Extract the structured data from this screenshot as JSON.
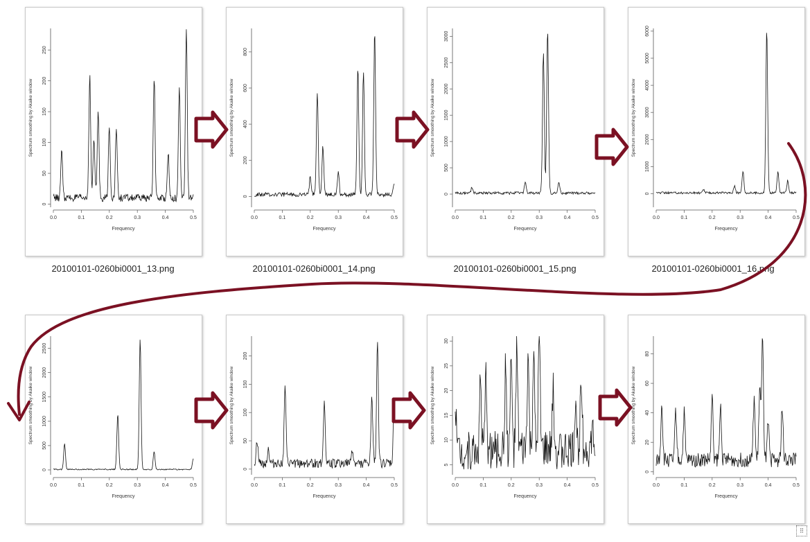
{
  "footer_text": "",
  "chart_data": [
    {
      "type": "line",
      "file": "20100101-0260bi0001_13.png",
      "xlabel": "Frequency",
      "ylabel": "Spectrum smoothing by Akaike window",
      "xlim": [
        0,
        0.5
      ],
      "xticks": [
        "0.0",
        "0.1",
        "0.2",
        "0.3",
        "0.4",
        "0.5"
      ],
      "ylim": [
        -5,
        285
      ],
      "yticks": [
        "0",
        "50",
        "100",
        "150",
        "200",
        "250"
      ],
      "ytick_values": [
        0,
        50,
        100,
        150,
        200,
        250
      ],
      "baseline": 10,
      "noise": 6,
      "peaks": [
        {
          "x": 0.03,
          "y": 88
        },
        {
          "x": 0.13,
          "y": 210
        },
        {
          "x": 0.145,
          "y": 105
        },
        {
          "x": 0.16,
          "y": 150
        },
        {
          "x": 0.2,
          "y": 128
        },
        {
          "x": 0.225,
          "y": 122
        },
        {
          "x": 0.36,
          "y": 207
        },
        {
          "x": 0.41,
          "y": 85
        },
        {
          "x": 0.45,
          "y": 185
        },
        {
          "x": 0.475,
          "y": 282
        }
      ]
    },
    {
      "type": "line",
      "file": "20100101-0260bi0001_14.png",
      "xlabel": "Frequency",
      "ylabel": "Spectrum smoothing by Akaike window",
      "xlim": [
        0,
        0.5
      ],
      "xticks": [
        "0.0",
        "0.1",
        "0.2",
        "0.3",
        "0.4",
        "0.5"
      ],
      "ylim": [
        -60,
        930
      ],
      "yticks": [
        "0",
        "200",
        "400",
        "600",
        "800"
      ],
      "ytick_values": [
        0,
        200,
        400,
        600,
        800
      ],
      "baseline": 10,
      "noise": 12,
      "peaks": [
        {
          "x": 0.2,
          "y": 110
        },
        {
          "x": 0.225,
          "y": 580
        },
        {
          "x": 0.245,
          "y": 280
        },
        {
          "x": 0.3,
          "y": 140
        },
        {
          "x": 0.37,
          "y": 720
        },
        {
          "x": 0.39,
          "y": 700
        },
        {
          "x": 0.43,
          "y": 920
        },
        {
          "x": 0.5,
          "y": 80
        }
      ]
    },
    {
      "type": "line",
      "file": "20100101-0260bi0001_15.png",
      "xlabel": "Frequency",
      "ylabel": "Spectrum smoothing by Akaike window",
      "xlim": [
        0,
        0.5
      ],
      "xticks": [
        "0.0",
        "0.1",
        "0.2",
        "0.3",
        "0.4",
        "0.5"
      ],
      "ylim": [
        -250,
        3150
      ],
      "yticks": [
        "0",
        "500",
        "1000",
        "1500",
        "2000",
        "2500",
        "3000"
      ],
      "ytick_values": [
        0,
        500,
        1000,
        1500,
        2000,
        2500,
        3000
      ],
      "baseline": 20,
      "noise": 25,
      "peaks": [
        {
          "x": 0.06,
          "y": 130
        },
        {
          "x": 0.25,
          "y": 230
        },
        {
          "x": 0.315,
          "y": 2700
        },
        {
          "x": 0.33,
          "y": 3150
        },
        {
          "x": 0.37,
          "y": 220
        }
      ]
    },
    {
      "type": "line",
      "file": "20100101-0260bi0001_16.png",
      "xlabel": "Frequency",
      "ylabel": "Spectrum smoothing by Akaike window",
      "xlim": [
        0,
        0.5
      ],
      "xticks": [
        "0.0",
        "0.1",
        "0.2",
        "0.3",
        "0.4",
        "0.5"
      ],
      "ylim": [
        -500,
        6100
      ],
      "yticks": [
        "0",
        "1000",
        "2000",
        "3000",
        "4000",
        "5000",
        "6000"
      ],
      "ytick_values": [
        0,
        1000,
        2000,
        3000,
        4000,
        5000,
        6000
      ],
      "baseline": 30,
      "noise": 40,
      "peaks": [
        {
          "x": 0.17,
          "y": 150
        },
        {
          "x": 0.28,
          "y": 300
        },
        {
          "x": 0.31,
          "y": 850
        },
        {
          "x": 0.395,
          "y": 6100
        },
        {
          "x": 0.435,
          "y": 800
        },
        {
          "x": 0.47,
          "y": 500
        }
      ]
    },
    {
      "type": "line",
      "file": "",
      "xlabel": "Frequency",
      "ylabel": "Spectrum smoothing by Akaike window",
      "xlim": [
        0,
        0.5
      ],
      "xticks": [
        "0.0",
        "0.1",
        "0.2",
        "0.3",
        "0.4",
        "0.5"
      ],
      "ylim": [
        -100,
        2750
      ],
      "yticks": [
        "0",
        "500",
        "1000",
        "1500",
        "2000",
        "2500"
      ],
      "ytick_values": [
        0,
        500,
        1000,
        1500,
        2000,
        2500
      ],
      "baseline": 10,
      "noise": 12,
      "peaks": [
        {
          "x": 0.04,
          "y": 540
        },
        {
          "x": 0.23,
          "y": 1150
        },
        {
          "x": 0.31,
          "y": 2700
        },
        {
          "x": 0.36,
          "y": 380
        },
        {
          "x": 0.5,
          "y": 240
        }
      ]
    },
    {
      "type": "line",
      "file": "",
      "xlabel": "Frequency",
      "ylabel": "Spectrum smoothing by Akaike window",
      "xlim": [
        0,
        0.5
      ],
      "xticks": [
        "0.0",
        "0.1",
        "0.2",
        "0.3",
        "0.4",
        "0.5"
      ],
      "ylim": [
        -10,
        235
      ],
      "yticks": [
        "0",
        "50",
        "100",
        "150",
        "200"
      ],
      "ytick_values": [
        0,
        50,
        100,
        150,
        200
      ],
      "baseline": 10,
      "noise": 8,
      "peaks": [
        {
          "x": 0.01,
          "y": 50
        },
        {
          "x": 0.05,
          "y": 35
        },
        {
          "x": 0.11,
          "y": 145
        },
        {
          "x": 0.25,
          "y": 120
        },
        {
          "x": 0.35,
          "y": 35
        },
        {
          "x": 0.42,
          "y": 125
        },
        {
          "x": 0.44,
          "y": 230
        },
        {
          "x": 0.5,
          "y": 125
        }
      ]
    },
    {
      "type": "line",
      "file": "",
      "xlabel": "Frequency",
      "ylabel": "Spectrum smoothing by Akaike window",
      "xlim": [
        0,
        0.5
      ],
      "xticks": [
        "0.0",
        "0.1",
        "0.2",
        "0.3",
        "0.4",
        "0.5"
      ],
      "ylim": [
        3,
        31
      ],
      "yticks": [
        "5",
        "10",
        "15",
        "20",
        "25",
        "30"
      ],
      "ytick_values": [
        5,
        10,
        15,
        20,
        25,
        30
      ],
      "baseline": 8,
      "noise": 4,
      "peaks": [
        {
          "x": 0.0,
          "y": 17
        },
        {
          "x": 0.09,
          "y": 22
        },
        {
          "x": 0.11,
          "y": 23
        },
        {
          "x": 0.18,
          "y": 25
        },
        {
          "x": 0.2,
          "y": 26
        },
        {
          "x": 0.22,
          "y": 28.5
        },
        {
          "x": 0.26,
          "y": 27
        },
        {
          "x": 0.28,
          "y": 27.5
        },
        {
          "x": 0.3,
          "y": 30.5
        },
        {
          "x": 0.35,
          "y": 20
        },
        {
          "x": 0.43,
          "y": 19
        },
        {
          "x": 0.45,
          "y": 24.5
        },
        {
          "x": 0.49,
          "y": 12
        }
      ]
    },
    {
      "type": "line",
      "file": "",
      "xlabel": "Frequency",
      "ylabel": "Spectrum smoothing by Akaike window",
      "xlim": [
        0,
        0.5
      ],
      "xticks": [
        "0.0",
        "0.1",
        "0.2",
        "0.3",
        "0.4",
        "0.5"
      ],
      "ylim": [
        -2,
        92
      ],
      "yticks": [
        "0",
        "20",
        "40",
        "60",
        "80"
      ],
      "ytick_values": [
        0,
        20,
        40,
        60,
        80
      ],
      "baseline": 8,
      "noise": 5,
      "peaks": [
        {
          "x": 0.02,
          "y": 47
        },
        {
          "x": 0.07,
          "y": 42
        },
        {
          "x": 0.1,
          "y": 40
        },
        {
          "x": 0.2,
          "y": 50
        },
        {
          "x": 0.23,
          "y": 45
        },
        {
          "x": 0.35,
          "y": 50
        },
        {
          "x": 0.37,
          "y": 58
        },
        {
          "x": 0.38,
          "y": 91
        },
        {
          "x": 0.4,
          "y": 32
        },
        {
          "x": 0.45,
          "y": 43
        }
      ]
    }
  ]
}
